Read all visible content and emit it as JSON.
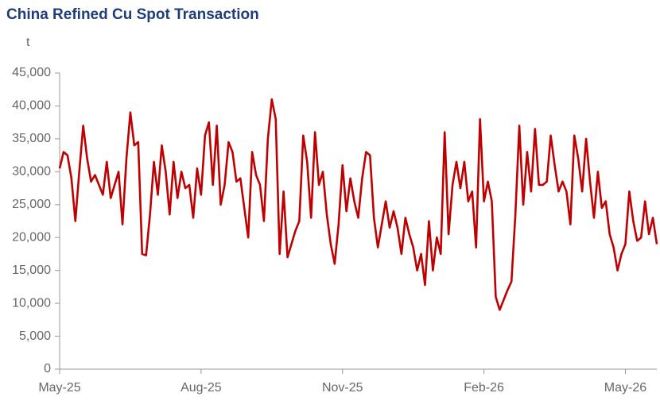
{
  "chart_data": {
    "type": "line",
    "title": "China Refined Cu Spot Transaction",
    "y_label": "t",
    "categories": [
      "May-25",
      null,
      null,
      null,
      null,
      null,
      null,
      null,
      null,
      null,
      null,
      null,
      null,
      null,
      null,
      null,
      null,
      null,
      null,
      null,
      null,
      null,
      null,
      null,
      null,
      null,
      null,
      null,
      null,
      null,
      null,
      null,
      null,
      null,
      null,
      null,
      "Aug-25",
      null,
      null,
      null,
      null,
      null,
      null,
      null,
      null,
      null,
      null,
      null,
      null,
      null,
      null,
      null,
      null,
      null,
      null,
      null,
      null,
      null,
      null,
      null,
      null,
      null,
      null,
      null,
      null,
      null,
      null,
      null,
      null,
      null,
      null,
      null,
      "Nov-25",
      null,
      null,
      null,
      null,
      null,
      null,
      null,
      null,
      null,
      null,
      null,
      null,
      null,
      null,
      null,
      null,
      null,
      null,
      null,
      null,
      null,
      null,
      null,
      null,
      null,
      null,
      null,
      null,
      null,
      null,
      null,
      null,
      null,
      null,
      null,
      "Feb-26",
      null,
      null,
      null,
      null,
      null,
      null,
      null,
      null,
      null,
      null,
      null,
      null,
      null,
      null,
      null,
      null,
      null,
      null,
      null,
      null,
      null,
      null,
      null,
      null,
      null,
      null,
      null,
      null,
      null,
      null,
      null,
      null,
      null,
      null,
      null,
      "May-26",
      null,
      null,
      null,
      null,
      null,
      null,
      null,
      null
    ],
    "values": [
      30500,
      33000,
      32500,
      29000,
      22500,
      30000,
      37000,
      32000,
      28500,
      29500,
      28000,
      26500,
      31500,
      26000,
      28000,
      30000,
      22000,
      32000,
      39000,
      34000,
      34500,
      17500,
      17300,
      23500,
      31500,
      26500,
      34000,
      30000,
      23500,
      31500,
      26000,
      30000,
      27500,
      28000,
      23000,
      30500,
      26500,
      35500,
      37500,
      28000,
      37000,
      25000,
      28000,
      34500,
      33000,
      28500,
      29000,
      24500,
      20000,
      33000,
      29500,
      28000,
      22500,
      35000,
      41000,
      38000,
      17500,
      27000,
      17000,
      19000,
      21000,
      22500,
      35500,
      31500,
      23000,
      36000,
      28000,
      30000,
      23500,
      19000,
      16000,
      22000,
      31000,
      24000,
      29000,
      25500,
      23000,
      29000,
      33000,
      32500,
      23000,
      18500,
      22000,
      25500,
      21500,
      24000,
      21500,
      17500,
      23000,
      20500,
      18500,
      15000,
      17500,
      12800,
      22500,
      15000,
      20000,
      17500,
      36000,
      20500,
      28000,
      31500,
      27500,
      31500,
      25500,
      27000,
      18500,
      38000,
      25500,
      28500,
      25500,
      11000,
      9000,
      10500,
      12000,
      13300,
      23500,
      37000,
      25000,
      33000,
      27000,
      36500,
      28000,
      28000,
      28500,
      35500,
      31000,
      27000,
      28500,
      27000,
      22000,
      35500,
      32000,
      27000,
      35000,
      28500,
      23000,
      30000,
      24500,
      25500,
      20500,
      18500,
      15000,
      17500,
      19000,
      27000,
      22500,
      19500,
      20000,
      25500,
      20500,
      23000,
      19000
    ],
    "color": "#c00000",
    "ylim": [
      0,
      45000
    ],
    "yticks": [
      0,
      {
        "value": 5000,
        "label": "5,000"
      },
      {
        "value": 10000,
        "label": "10,000"
      },
      {
        "value": 15000,
        "label": "15,000"
      },
      {
        "value": 20000,
        "label": "20,000"
      },
      {
        "value": 25000,
        "label": "25,000"
      },
      {
        "value": 30000,
        "label": "30,000"
      },
      {
        "value": 35000,
        "label": "35,000"
      },
      {
        "value": 40000,
        "label": "40,000"
      },
      {
        "value": 45000,
        "label": "45,000"
      }
    ],
    "grid": false
  }
}
